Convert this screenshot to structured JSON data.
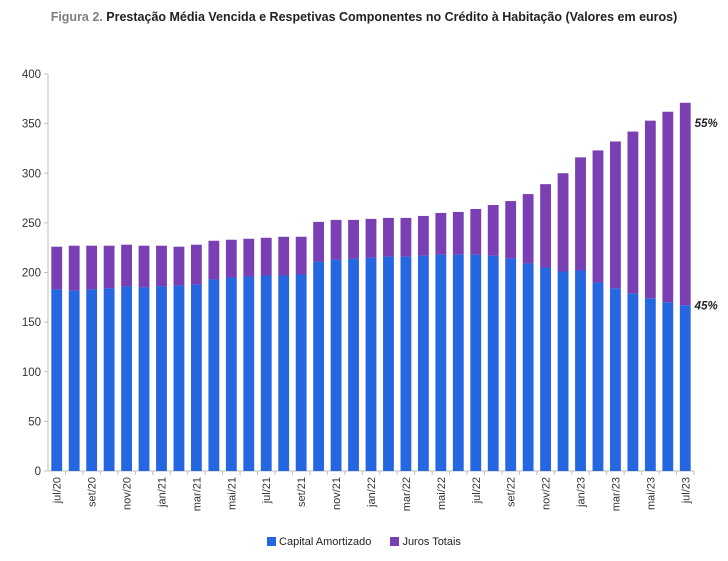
{
  "figure": {
    "label": "Figura 2.",
    "title": "Prestação Média Vencida e Respetivas Componentes no Crédito à Habitação (Valores em euros)"
  },
  "colors": {
    "capital": "#2467e0",
    "juros": "#7a3fb3",
    "axis": "#bfbfbf",
    "text": "#333333"
  },
  "chart_data": {
    "type": "bar",
    "stacked": true,
    "title": "Prestação Média Vencida e Respetivas Componentes no Crédito à Habitação (Valores em euros)",
    "xlabel": "",
    "ylabel": "",
    "ylim": [
      0,
      400
    ],
    "yticks": [
      "0",
      "50",
      "100",
      "150",
      "200",
      "250",
      "300",
      "350",
      "400"
    ],
    "grid": false,
    "legend_position": "bottom",
    "categories": [
      "jul/20",
      "ago/20",
      "set/20",
      "out/20",
      "nov/20",
      "dez/20",
      "jan/21",
      "fev/21",
      "mar/21",
      "abr/21",
      "mai/21",
      "jun/21",
      "jul/21",
      "ago/21",
      "set/21",
      "out/21",
      "nov/21",
      "dez/21",
      "jan/22",
      "fev/22",
      "mar/22",
      "abr/22",
      "mai/22",
      "jun/22",
      "jul/22",
      "ago/22",
      "set/22",
      "out/22",
      "nov/22",
      "dez/22",
      "jan/23",
      "fev/23",
      "mar/23",
      "abr/23",
      "mai/23",
      "jun/23",
      "jul/23"
    ],
    "tick_labels": [
      "jul/20",
      "",
      "set/20",
      "",
      "nov/20",
      "",
      "jan/21",
      "",
      "mar/21",
      "",
      "mai/21",
      "",
      "jul/21",
      "",
      "set/21",
      "",
      "nov/21",
      "",
      "jan/22",
      "",
      "mar/22",
      "",
      "mai/22",
      "",
      "jul/22",
      "",
      "set/22",
      "",
      "nov/22",
      "",
      "jan/23",
      "",
      "mar/23",
      "",
      "mai/23",
      "",
      "jul/23"
    ],
    "series": [
      {
        "name": "Capital Amortizado",
        "values": [
          183,
          182,
          183,
          184,
          186,
          185,
          186,
          187,
          188,
          193,
          195,
          196,
          197,
          197,
          198,
          211,
          213,
          214,
          215,
          216,
          216,
          217,
          218,
          218,
          218,
          217,
          214,
          209,
          205,
          201,
          202,
          190,
          184,
          179,
          174,
          170,
          167
        ]
      },
      {
        "name": "Juros Totais",
        "values": [
          43,
          45,
          44,
          43,
          42,
          42,
          41,
          39,
          40,
          39,
          38,
          38,
          38,
          39,
          38,
          40,
          40,
          39,
          39,
          39,
          39,
          40,
          42,
          43,
          46,
          51,
          58,
          70,
          84,
          99,
          114,
          133,
          148,
          163,
          179,
          192,
          204
        ]
      }
    ],
    "annotations": [
      {
        "text": "55%",
        "series": "Juros Totais",
        "category": "jul/23"
      },
      {
        "text": "45%",
        "series": "Capital Amortizado",
        "category": "jul/23"
      }
    ]
  }
}
